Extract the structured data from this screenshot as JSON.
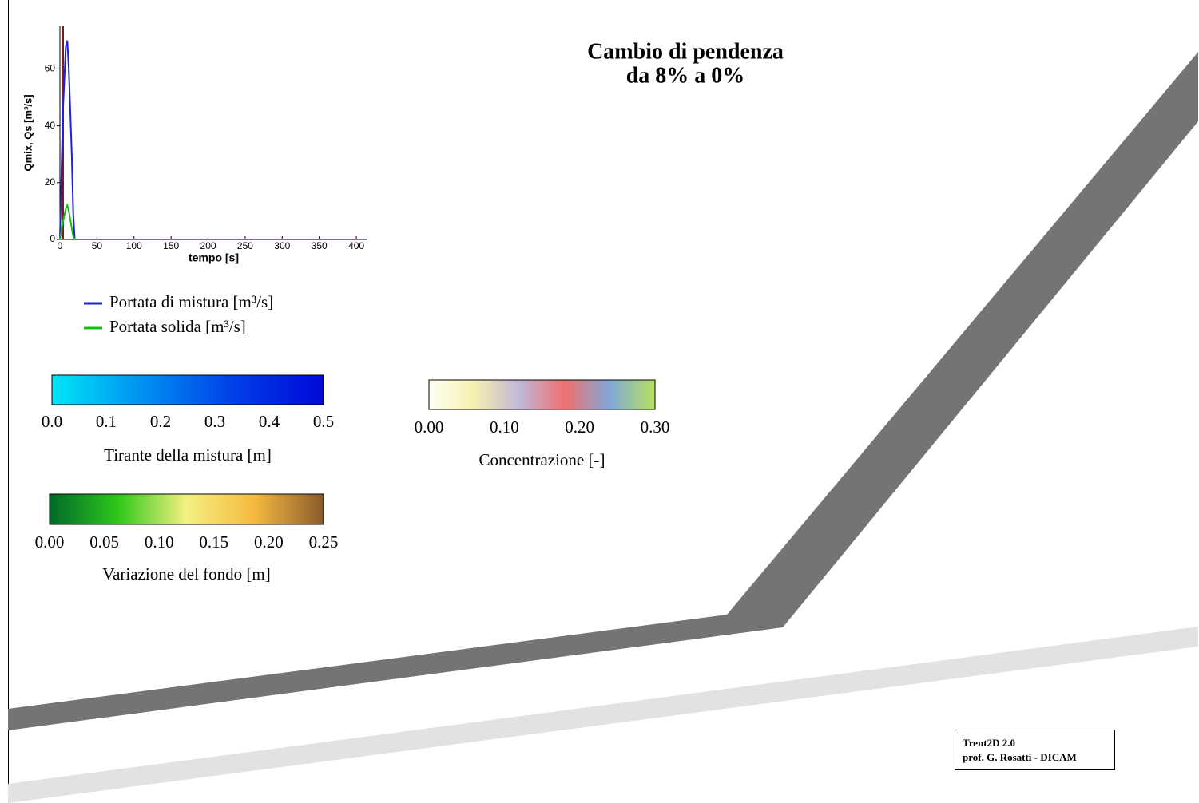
{
  "title_lines": [
    "Cambio di pendenza",
    "da 8% a 0%"
  ],
  "chart_data": {
    "type": "line",
    "x_label": "tempo [s]",
    "y_label": "Qmix, Qs [m³/s]",
    "x": [
      0,
      4,
      8,
      10,
      12,
      16,
      18,
      20,
      400
    ],
    "series": [
      {
        "name": "Portata di mistura [m³/s]",
        "color": "#2020e0",
        "values": [
          0,
          45,
          68,
          70,
          60,
          30,
          9,
          0,
          0
        ]
      },
      {
        "name": "Portata solida [m³/s]",
        "color": "#10c010",
        "values": [
          0,
          6,
          11,
          12,
          10,
          4,
          1,
          0,
          0
        ]
      }
    ],
    "xlim": [
      0,
      415
    ],
    "ylim": [
      0,
      75
    ],
    "xticks": [
      0,
      50,
      100,
      150,
      200,
      250,
      300,
      350,
      400
    ],
    "yticks": [
      0,
      20,
      40,
      60
    ]
  },
  "colorbars": [
    {
      "label": "Tirante della mistura [m]",
      "ticks": [
        "0.0",
        "0.1",
        "0.2",
        "0.3",
        "0.4",
        "0.5"
      ],
      "colors": [
        "#00e6f6",
        "#0090f0",
        "#0040e8",
        "#0008d8"
      ]
    },
    {
      "label": "Variazione del fondo [m]",
      "ticks": [
        "0.00",
        "0.05",
        "0.10",
        "0.15",
        "0.20",
        "0.25"
      ],
      "colors": [
        "#006a2a",
        "#2ec81a",
        "#f5f080",
        "#f5b840",
        "#8b5a2b"
      ]
    },
    {
      "label": "Concentrazione [-]",
      "ticks": [
        "0.00",
        "0.10",
        "0.20",
        "0.30"
      ],
      "colors": [
        "#fffff4",
        "#f6f0b0",
        "#c0b8d8",
        "#f07070",
        "#80a8d8",
        "#b8e060"
      ]
    }
  ],
  "credits": [
    "Trent2D 2.0",
    "prof. G. Rosatti - DICAM"
  ]
}
